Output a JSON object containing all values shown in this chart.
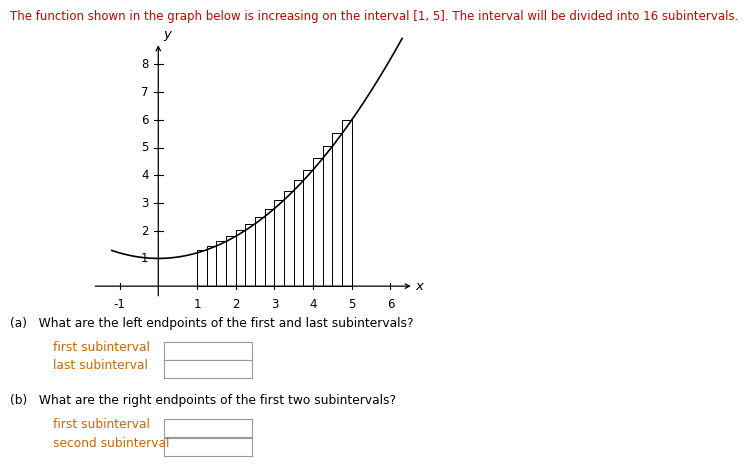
{
  "title_text": "The function shown in the graph below is increasing on the interval [1, 5]. The interval will be divided into 16 subintervals.",
  "title_color": "#cc0000",
  "title_fontsize": 8.5,
  "interval_start": 1,
  "interval_end": 5,
  "n_subintervals": 16,
  "xlim": [
    -1.8,
    7.0
  ],
  "ylim": [
    -0.5,
    9.2
  ],
  "xticks": [
    -1,
    1,
    2,
    3,
    4,
    5,
    6
  ],
  "yticks": [
    1,
    2,
    3,
    4,
    5,
    6,
    7,
    8
  ],
  "xlabel": "x",
  "ylabel": "y",
  "curve_color": "#000000",
  "bar_edge_color": "#000000",
  "bar_face_color": "#ffffff",
  "question_a_color": "#000000",
  "question_b_color": "#000000",
  "label_color": "#cc6600",
  "question_a_text": "(a)   What are the left endpoints of the first and last subintervals?",
  "question_b_text": "(b)   What are the right endpoints of the first two subintervals?",
  "label_first_a": "first subinterval",
  "label_last_a": "last subinterval",
  "label_first_b": "first subinterval",
  "label_second_b": "second subinterval",
  "background_color": "#ffffff"
}
